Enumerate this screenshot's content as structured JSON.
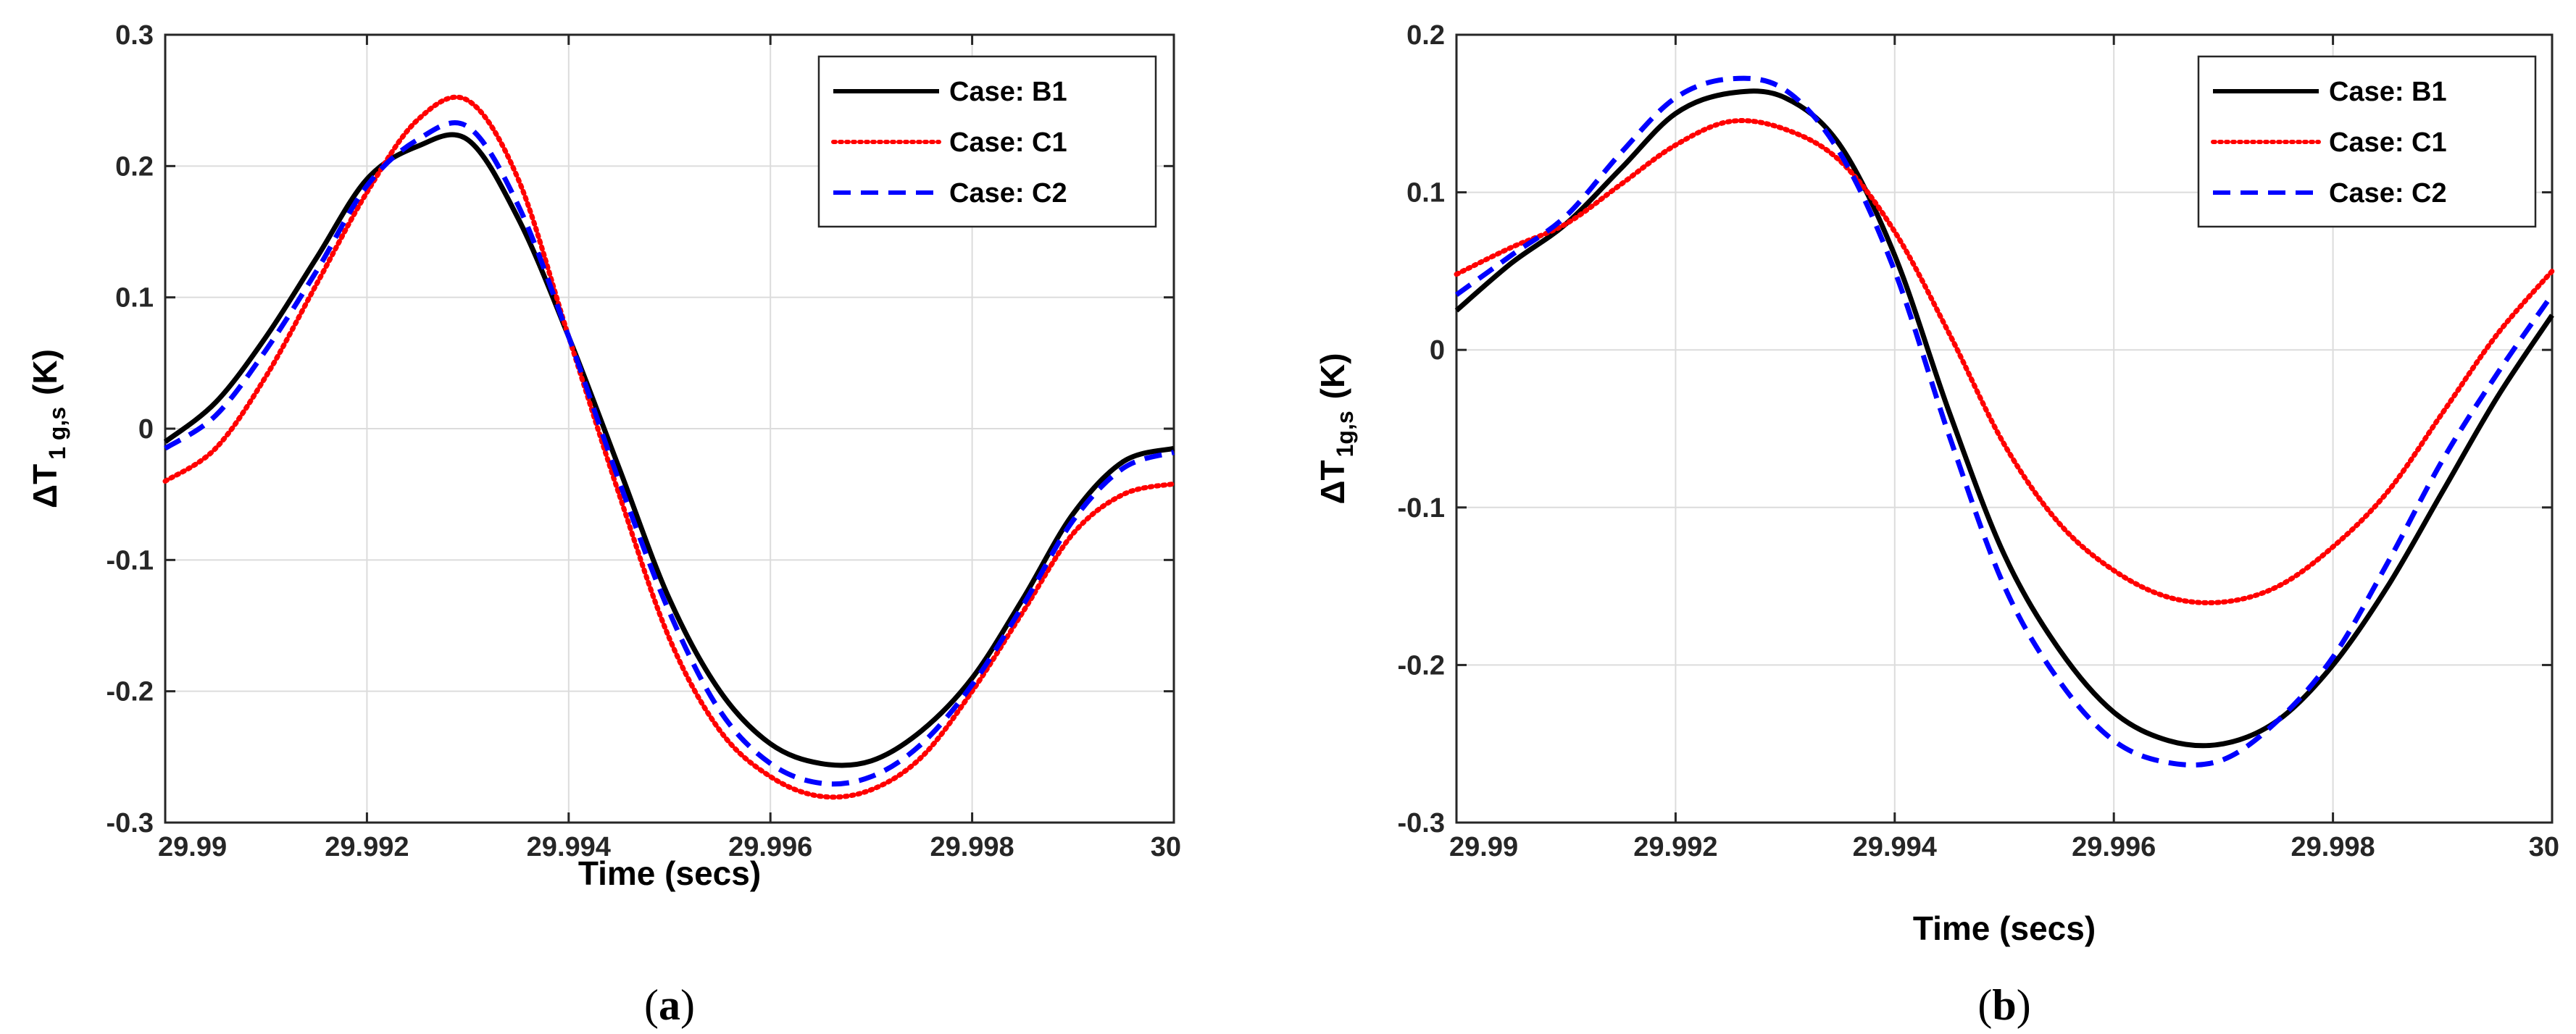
{
  "chart_data": [
    {
      "type": "line",
      "panel_label": "a",
      "caption_open": "(",
      "caption_close": ")",
      "xlabel": "Time (secs)",
      "ylabel_main": "ΔT",
      "ylabel_sub": "1 g,s",
      "ylabel_unit": "(K)",
      "xlim": [
        29.99,
        30
      ],
      "ylim": [
        -0.3,
        0.3
      ],
      "xticks": [
        29.99,
        29.992,
        29.994,
        29.996,
        29.998,
        30
      ],
      "xtick_labels": [
        "29.99",
        "29.992",
        "29.994",
        "29.996",
        "29.998",
        "30"
      ],
      "yticks": [
        -0.3,
        -0.2,
        -0.1,
        0,
        0.1,
        0.2,
        0.3
      ],
      "ytick_labels": [
        "-0.3",
        "-0.2",
        "-0.1",
        "0",
        "0.1",
        "0.2",
        "0.3"
      ],
      "grid": true,
      "legend_position": "top-right",
      "x": [
        29.99,
        29.9905,
        29.991,
        29.9915,
        29.992,
        29.9925,
        29.993,
        29.9935,
        29.994,
        29.9945,
        29.995,
        29.9955,
        29.996,
        29.9965,
        29.997,
        29.9975,
        29.998,
        29.9985,
        29.999,
        29.9995,
        30
      ],
      "series": [
        {
          "name": "Case: B1",
          "color": "#000000",
          "style": "solid",
          "values": [
            -0.01,
            0.02,
            0.07,
            0.13,
            0.19,
            0.215,
            0.22,
            0.16,
            0.07,
            -0.03,
            -0.13,
            -0.2,
            -0.24,
            -0.255,
            -0.253,
            -0.23,
            -0.19,
            -0.13,
            -0.065,
            -0.025,
            -0.015
          ]
        },
        {
          "name": "Case: C1",
          "color": "#ff0000",
          "style": "dotted",
          "values": [
            -0.04,
            -0.015,
            0.04,
            0.11,
            0.18,
            0.235,
            0.25,
            0.19,
            0.07,
            -0.05,
            -0.16,
            -0.23,
            -0.265,
            -0.28,
            -0.275,
            -0.25,
            -0.2,
            -0.14,
            -0.08,
            -0.05,
            -0.042
          ]
        },
        {
          "name": "Case: C2",
          "color": "#0000ff",
          "style": "dashed",
          "values": [
            -0.015,
            0.01,
            0.06,
            0.12,
            0.185,
            0.22,
            0.23,
            0.17,
            0.07,
            -0.04,
            -0.14,
            -0.215,
            -0.255,
            -0.27,
            -0.265,
            -0.24,
            -0.195,
            -0.135,
            -0.07,
            -0.03,
            -0.018
          ]
        }
      ]
    },
    {
      "type": "line",
      "panel_label": "b",
      "caption_open": "(",
      "caption_close": ")",
      "xlabel": "Time (secs)",
      "ylabel_main": "ΔT",
      "ylabel_sub": "1g,s",
      "ylabel_unit": "(K)",
      "xlim": [
        29.99,
        30
      ],
      "ylim": [
        -0.3,
        0.2
      ],
      "xticks": [
        29.99,
        29.992,
        29.994,
        29.996,
        29.998,
        30
      ],
      "xtick_labels": [
        "29.99",
        "29.992",
        "29.994",
        "29.996",
        "29.998",
        "30"
      ],
      "yticks": [
        -0.3,
        -0.2,
        -0.1,
        0,
        0.1,
        0.2
      ],
      "ytick_labels": [
        "-0.3",
        "-0.2",
        "-0.1",
        "0",
        "0.1",
        "0.2"
      ],
      "grid": true,
      "legend_position": "top-right",
      "x": [
        29.99,
        29.9905,
        29.991,
        29.9915,
        29.992,
        29.9925,
        29.993,
        29.9935,
        29.994,
        29.9945,
        29.995,
        29.9955,
        29.996,
        29.9965,
        29.997,
        29.9975,
        29.998,
        29.9985,
        29.999,
        29.9995,
        30
      ],
      "series": [
        {
          "name": "Case: B1",
          "color": "#000000",
          "style": "solid",
          "values": [
            0.025,
            0.055,
            0.08,
            0.115,
            0.15,
            0.163,
            0.16,
            0.13,
            0.06,
            -0.04,
            -0.13,
            -0.19,
            -0.23,
            -0.248,
            -0.25,
            -0.235,
            -0.2,
            -0.15,
            -0.09,
            -0.03,
            0.022
          ]
        },
        {
          "name": "Case: C1",
          "color": "#ff0000",
          "style": "dotted",
          "values": [
            0.048,
            0.065,
            0.08,
            0.105,
            0.13,
            0.145,
            0.14,
            0.12,
            0.075,
            0.01,
            -0.06,
            -0.11,
            -0.14,
            -0.157,
            -0.16,
            -0.15,
            -0.125,
            -0.09,
            -0.04,
            0.01,
            0.05
          ]
        },
        {
          "name": "Case: C2",
          "color": "#0000ff",
          "style": "dashed",
          "values": [
            0.035,
            0.06,
            0.085,
            0.125,
            0.16,
            0.172,
            0.165,
            0.125,
            0.05,
            -0.055,
            -0.15,
            -0.21,
            -0.248,
            -0.262,
            -0.26,
            -0.235,
            -0.195,
            -0.135,
            -0.07,
            -0.015,
            0.035
          ]
        }
      ]
    }
  ]
}
